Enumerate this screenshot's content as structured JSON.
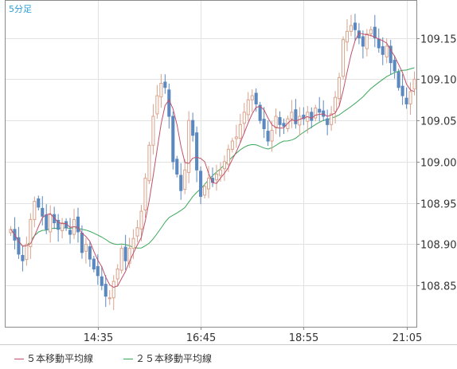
{
  "chart_data": {
    "type": "candlestick",
    "period_label": "5分足",
    "y_ticks": [
      108.85,
      108.9,
      108.95,
      109.0,
      109.05,
      109.1,
      109.15
    ],
    "y_tick_labels": [
      "108.85",
      "108.90",
      "108.95",
      "109.00",
      "109.05",
      "109.10",
      "109.15"
    ],
    "ylim": [
      108.8,
      109.195
    ],
    "x_tick_labels": [
      "14:35",
      "16:45",
      "18:55",
      "21:05"
    ],
    "x_tick_indices": [
      22,
      48,
      74,
      100
    ],
    "bar_count": 103,
    "up_color": "#d9a38c",
    "down_color": "#5b88bf",
    "ma_colors": {
      "ma5": "#c0506a",
      "ma25": "#3aa85a"
    },
    "legend": [
      "５本移動平均線",
      "２５本移動平均線"
    ],
    "close": [
      108.918,
      108.905,
      108.888,
      108.88,
      108.9,
      108.93,
      108.952,
      108.945,
      108.934,
      108.918,
      108.936,
      108.926,
      108.918,
      108.926,
      108.92,
      108.912,
      108.93,
      108.915,
      108.89,
      108.9,
      108.882,
      108.87,
      108.862,
      108.85,
      108.837,
      108.835,
      108.855,
      108.87,
      108.895,
      108.88,
      108.895,
      108.907,
      108.92,
      108.94,
      108.98,
      109.02,
      109.055,
      109.08,
      109.095,
      109.09,
      109.055,
      109.0,
      108.985,
      108.965,
      108.99,
      109.05,
      109.032,
      108.99,
      108.958,
      108.97,
      108.98,
      108.975,
      108.985,
      108.99,
      109.0,
      109.015,
      109.025,
      109.03,
      109.045,
      109.06,
      109.075,
      109.08,
      109.07,
      109.05,
      109.04,
      109.025,
      109.038,
      109.055,
      109.045,
      109.043,
      109.052,
      109.06,
      109.046,
      109.055,
      109.052,
      109.06,
      109.05,
      109.065,
      109.06,
      109.055,
      109.045,
      109.058,
      109.078,
      109.102,
      109.148,
      109.158,
      109.165,
      109.16,
      109.15,
      109.14,
      109.155,
      109.16,
      109.15,
      109.138,
      109.13,
      109.14,
      109.12,
      109.11,
      109.09,
      109.08,
      109.07,
      109.085,
      109.1
    ]
  },
  "legend_labels": {
    "ma5": "５本移動平均線",
    "ma25": "２５本移動平均線"
  }
}
